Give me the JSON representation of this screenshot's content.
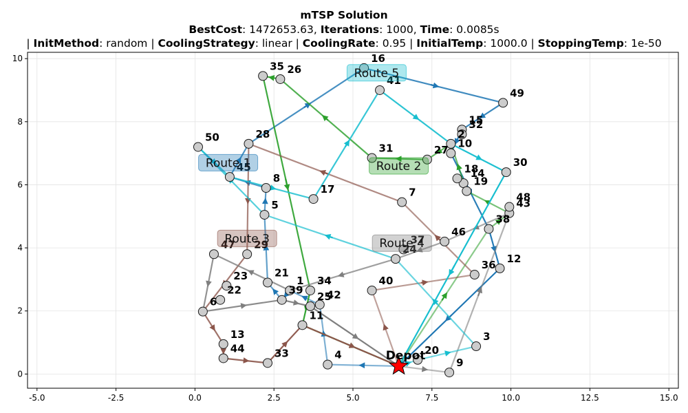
{
  "chart_data": {
    "type": "scatter",
    "title": "mTSP Solution",
    "subtitle_parts": [
      {
        "key": "BestCost",
        "value": "1472653.63"
      },
      {
        "key": "Iterations",
        "value": "1000"
      },
      {
        "key": "Time",
        "value": "0.0085s"
      }
    ],
    "params_parts": [
      {
        "key": "InitMethod",
        "value": "random"
      },
      {
        "key": "CoolingStrategy",
        "value": "linear"
      },
      {
        "key": "CoolingRate",
        "value": "0.95"
      },
      {
        "key": "InitialTemp",
        "value": "1000.0"
      },
      {
        "key": "StoppingTemp",
        "value": "1e-50"
      }
    ],
    "xlim": [
      -5.3,
      15.3
    ],
    "ylim": [
      -0.45,
      10.2
    ],
    "xticks": [
      -5.0,
      -2.5,
      0.0,
      2.5,
      5.0,
      7.5,
      10.0,
      12.5,
      15.0
    ],
    "yticks": [
      0,
      2,
      4,
      6,
      8,
      10
    ],
    "grid": true,
    "depot": {
      "label": "Depot",
      "x": 6.45,
      "y": 0.25,
      "color": "#ff0000"
    },
    "cities": [
      {
        "id": "1",
        "x": 3.0,
        "y": 2.65
      },
      {
        "id": "3",
        "x": 8.9,
        "y": 0.88
      },
      {
        "id": "4",
        "x": 4.2,
        "y": 0.3
      },
      {
        "id": "5",
        "x": 2.2,
        "y": 5.05
      },
      {
        "id": "6",
        "x": 0.25,
        "y": 1.98
      },
      {
        "id": "7",
        "x": 6.55,
        "y": 5.45
      },
      {
        "id": "8",
        "x": 2.25,
        "y": 5.9
      },
      {
        "id": "9",
        "x": 8.05,
        "y": 0.05
      },
      {
        "id": "10",
        "x": 8.1,
        "y": 7.0
      },
      {
        "id": "11",
        "x": 3.4,
        "y": 1.55
      },
      {
        "id": "12",
        "x": 9.65,
        "y": 3.35
      },
      {
        "id": "13",
        "x": 0.9,
        "y": 0.95
      },
      {
        "id": "14",
        "x": 8.5,
        "y": 6.05
      },
      {
        "id": "15",
        "x": 8.45,
        "y": 7.75
      },
      {
        "id": "16",
        "x": 5.35,
        "y": 9.7
      },
      {
        "id": "17",
        "x": 3.75,
        "y": 5.55
      },
      {
        "id": "18",
        "x": 8.3,
        "y": 6.2
      },
      {
        "id": "19",
        "x": 8.6,
        "y": 5.8
      },
      {
        "id": "20",
        "x": 7.05,
        "y": 0.45
      },
      {
        "id": "21",
        "x": 2.3,
        "y": 2.9
      },
      {
        "id": "22",
        "x": 0.8,
        "y": 2.35
      },
      {
        "id": "23",
        "x": 1.0,
        "y": 2.8
      },
      {
        "id": "24",
        "x": 6.35,
        "y": 3.65
      },
      {
        "id": "25",
        "x": 3.65,
        "y": 2.15
      },
      {
        "id": "26",
        "x": 2.7,
        "y": 9.35
      },
      {
        "id": "27",
        "x": 7.35,
        "y": 6.8
      },
      {
        "id": "28",
        "x": 1.7,
        "y": 7.3
      },
      {
        "id": "29",
        "x": 1.65,
        "y": 3.8
      },
      {
        "id": "2",
        "x": 8.1,
        "y": 7.3
      },
      {
        "id": "30",
        "x": 9.85,
        "y": 6.4
      },
      {
        "id": "31",
        "x": 5.6,
        "y": 6.85
      },
      {
        "id": "32",
        "x": 8.45,
        "y": 7.6
      },
      {
        "id": "33",
        "x": 2.3,
        "y": 0.35
      },
      {
        "id": "34",
        "x": 3.65,
        "y": 2.65
      },
      {
        "id": "35",
        "x": 2.15,
        "y": 9.45
      },
      {
        "id": "36",
        "x": 8.85,
        "y": 3.15
      },
      {
        "id": "37",
        "x": 6.6,
        "y": 3.95
      },
      {
        "id": "38",
        "x": 9.3,
        "y": 4.6
      },
      {
        "id": "39",
        "x": 2.75,
        "y": 2.35
      },
      {
        "id": "40",
        "x": 5.6,
        "y": 2.65
      },
      {
        "id": "41",
        "x": 5.85,
        "y": 9.0
      },
      {
        "id": "42",
        "x": 3.95,
        "y": 2.2
      },
      {
        "id": "43",
        "x": 9.95,
        "y": 5.1
      },
      {
        "id": "44",
        "x": 0.9,
        "y": 0.5
      },
      {
        "id": "45",
        "x": 1.1,
        "y": 6.25
      },
      {
        "id": "46",
        "x": 7.9,
        "y": 4.2
      },
      {
        "id": "47",
        "x": 0.6,
        "y": 3.8
      },
      {
        "id": "48",
        "x": 9.95,
        "y": 5.3
      },
      {
        "id": "49",
        "x": 9.75,
        "y": 8.6
      },
      {
        "id": "50",
        "x": 0.1,
        "y": 7.2
      }
    ],
    "route_labels": [
      {
        "name": "Route 1",
        "x": 1.05,
        "y": 6.7,
        "color": "#1f77b4"
      },
      {
        "name": "Route 2",
        "x": 6.45,
        "y": 6.6,
        "color": "#2ca02c"
      },
      {
        "name": "Route 3",
        "x": 1.65,
        "y": 4.3,
        "color": "#8c564b"
      },
      {
        "name": "Route 4",
        "x": 6.55,
        "y": 4.15,
        "color": "#7f7f7f"
      },
      {
        "name": "Route 5",
        "x": 5.75,
        "y": 9.55,
        "color": "#17becf"
      }
    ],
    "series": [
      {
        "name": "Route 1",
        "color": "#1f77b4",
        "path": [
          "Depot",
          "4",
          "42",
          "1",
          "39",
          "21",
          "5",
          "8",
          "45",
          "28",
          "16",
          "49",
          "15",
          "10",
          "38",
          "12",
          "Depot"
        ]
      },
      {
        "name": "Route 2",
        "color": "#2ca02c",
        "path": [
          "Depot",
          "38",
          "43",
          "19",
          "2",
          "27",
          "31",
          "26",
          "35",
          "34",
          "11",
          "Depot"
        ]
      },
      {
        "name": "Route 3",
        "color": "#8c564b",
        "path": [
          "Depot",
          "40",
          "36",
          "7",
          "28",
          "29",
          "6",
          "13",
          "44",
          "33",
          "11",
          "Depot"
        ]
      },
      {
        "name": "Route 4",
        "color": "#7f7f7f",
        "path": [
          "Depot",
          "9",
          "43",
          "46",
          "24",
          "1",
          "47",
          "6",
          "39",
          "25",
          "Depot"
        ]
      },
      {
        "name": "Route 5",
        "color": "#17becf",
        "path": [
          "Depot",
          "20",
          "3",
          "24",
          "5",
          "50",
          "45",
          "17",
          "41",
          "2",
          "30",
          "Depot"
        ]
      }
    ]
  }
}
